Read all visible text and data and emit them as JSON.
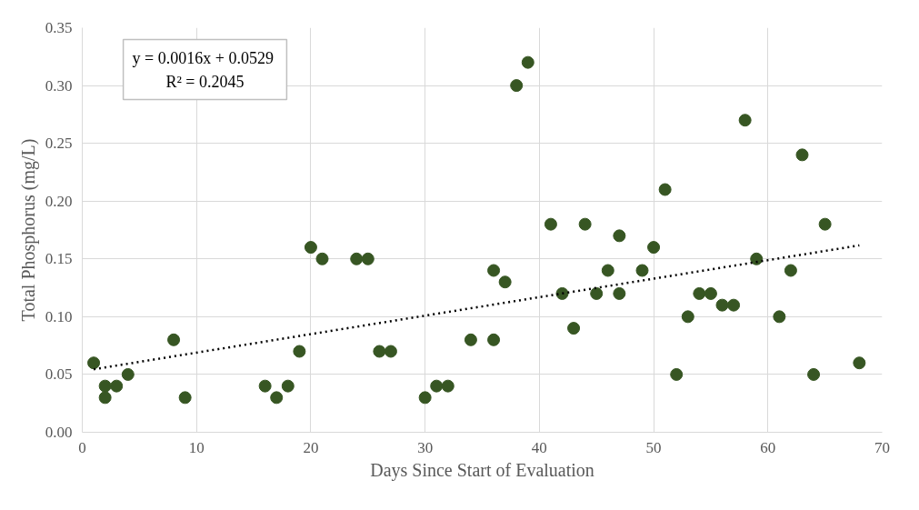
{
  "chart_data": {
    "type": "scatter",
    "xlabel": "Days Since Start of Evaluation",
    "ylabel": "Total Phosphorus (mg/L)",
    "annotations": [
      "y = 0.0016x  + 0.0529",
      "R² = 0.2045"
    ],
    "xlim": [
      0,
      70
    ],
    "xticks": [
      0,
      10,
      20,
      30,
      40,
      50,
      60,
      70
    ],
    "ylim": [
      0,
      0.35
    ],
    "yticks": [
      {
        "value": 0,
        "label": "0.00"
      },
      {
        "value": 0.05,
        "label": "0.05"
      },
      {
        "value": 0.1,
        "label": "0.10"
      },
      {
        "value": 0.15,
        "label": "0.15"
      },
      {
        "value": 0.2,
        "label": "0.20"
      },
      {
        "value": 0.25,
        "label": "0.25"
      },
      {
        "value": 0.3,
        "label": "0.30"
      },
      {
        "value": 0.35,
        "label": "0.35"
      }
    ],
    "grid": true,
    "marker": "circle",
    "series": [
      {
        "color": "#375623",
        "x": [
          1,
          2,
          2,
          3,
          4,
          8,
          9,
          16,
          17,
          18,
          19,
          20,
          21,
          24,
          25,
          26,
          27,
          30,
          31,
          32,
          34,
          36,
          36,
          37,
          38,
          39,
          41,
          42,
          43,
          44,
          45,
          46,
          47,
          47,
          49,
          50,
          51,
          52,
          53,
          54,
          55,
          56,
          57,
          58,
          59,
          61,
          62,
          63,
          64,
          65,
          68
        ],
        "values": [
          0.06,
          0.04,
          0.03,
          0.04,
          0.05,
          0.08,
          0.03,
          0.04,
          0.03,
          0.04,
          0.07,
          0.16,
          0.15,
          0.15,
          0.15,
          0.07,
          0.07,
          0.03,
          0.04,
          0.04,
          0.08,
          0.14,
          0.08,
          0.13,
          0.3,
          0.32,
          0.18,
          0.12,
          0.09,
          0.18,
          0.12,
          0.14,
          0.17,
          0.12,
          0.14,
          0.16,
          0.21,
          0.05,
          0.1,
          0.12,
          0.12,
          0.11,
          0.11,
          0.27,
          0.15,
          0.1,
          0.14,
          0.24,
          0.05,
          0.18,
          0.06
        ]
      },
      {
        "type": "line",
        "color": "#000000",
        "line_style": "dotted",
        "marker": "none",
        "x": [
          1,
          68
        ],
        "values": [
          0.0545,
          0.1617
        ]
      }
    ]
  }
}
